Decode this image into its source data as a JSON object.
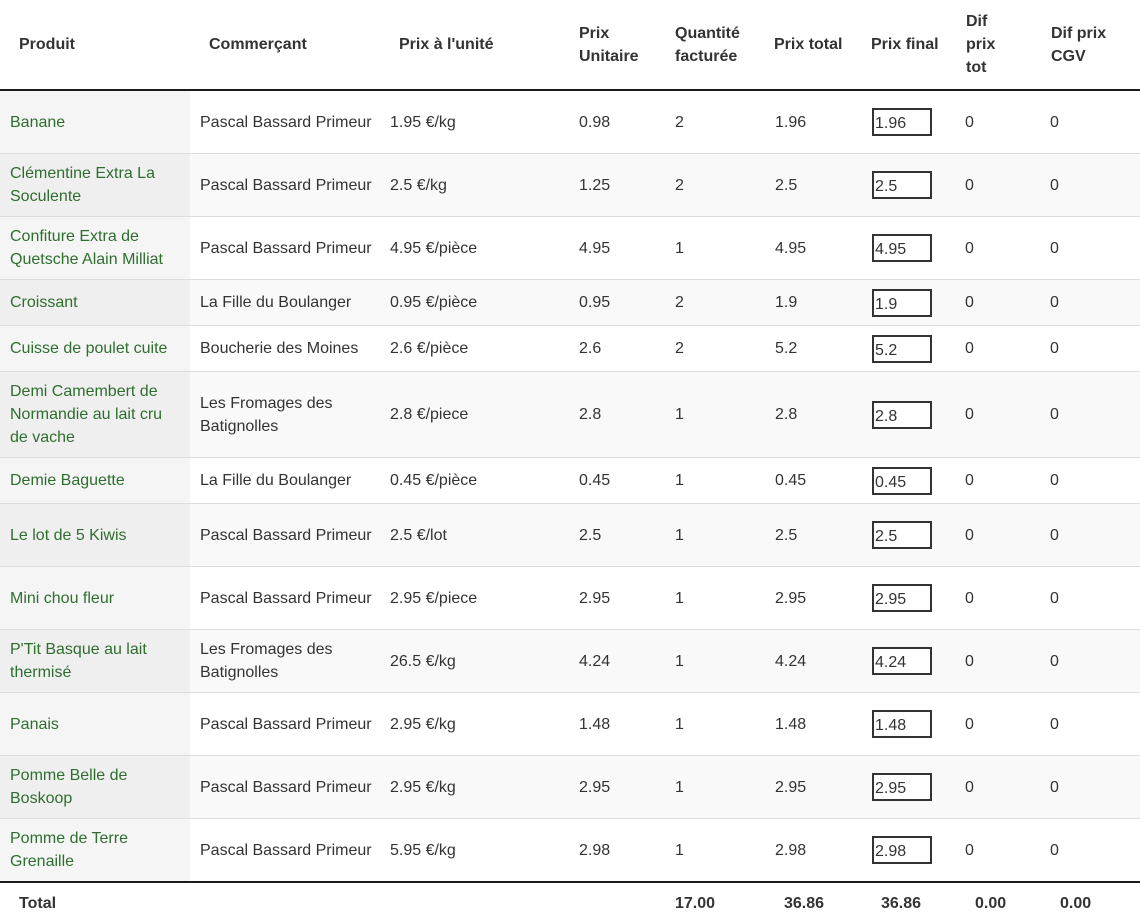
{
  "headers": {
    "produit": "Produit",
    "commercant": "Commerçant",
    "prix_unite": "Prix à l'unité",
    "prix_unitaire": "Prix Unitaire",
    "quantite": "Quantité facturée",
    "prix_total": "Prix total",
    "prix_final": "Prix final",
    "dif_prix_tot": "Dif prix tot",
    "dif_prix_cgv": "Dif prix CGV"
  },
  "rows": [
    {
      "produit": "Banane",
      "commercant": "Pascal Bassard Primeur",
      "prix_unite": "1.95 €/kg",
      "prix_unitaire": "0.98",
      "quantite": "2",
      "prix_total": "1.96",
      "prix_final": "1.96",
      "dif_tot": "0",
      "dif_cgv": "0"
    },
    {
      "produit": "Clémentine Extra La Soculente",
      "commercant": "Pascal Bassard Primeur",
      "prix_unite": "2.5 €/kg",
      "prix_unitaire": "1.25",
      "quantite": "2",
      "prix_total": "2.5",
      "prix_final": "2.5",
      "dif_tot": "0",
      "dif_cgv": "0"
    },
    {
      "produit": "Confiture Extra de Quetsche Alain Milliat",
      "commercant": "Pascal Bassard Primeur",
      "prix_unite": "4.95 €/pièce",
      "prix_unitaire": "4.95",
      "quantite": "1",
      "prix_total": "4.95",
      "prix_final": "4.95",
      "dif_tot": "0",
      "dif_cgv": "0"
    },
    {
      "produit": "Croissant",
      "commercant": "La Fille du Boulanger",
      "prix_unite": "0.95 €/pièce",
      "prix_unitaire": "0.95",
      "quantite": "2",
      "prix_total": "1.9",
      "prix_final": "1.9",
      "dif_tot": "0",
      "dif_cgv": "0"
    },
    {
      "produit": "Cuisse de poulet cuite",
      "commercant": "Boucherie des Moines",
      "prix_unite": "2.6 €/pièce",
      "prix_unitaire": "2.6",
      "quantite": "2",
      "prix_total": "5.2",
      "prix_final": "5.2",
      "dif_tot": "0",
      "dif_cgv": "0"
    },
    {
      "produit": "Demi Camembert de Normandie au lait cru de vache",
      "commercant": "Les Fromages des Batignolles",
      "prix_unite": "2.8 €/piece",
      "prix_unitaire": "2.8",
      "quantite": "1",
      "prix_total": "2.8",
      "prix_final": "2.8",
      "dif_tot": "0",
      "dif_cgv": "0"
    },
    {
      "produit": "Demie Baguette",
      "commercant": "La Fille du Boulanger",
      "prix_unite": "0.45 €/pièce",
      "prix_unitaire": "0.45",
      "quantite": "1",
      "prix_total": "0.45",
      "prix_final": "0.45",
      "dif_tot": "0",
      "dif_cgv": "0"
    },
    {
      "produit": "Le lot de 5 Kiwis",
      "commercant": "Pascal Bassard Primeur",
      "prix_unite": "2.5 €/lot",
      "prix_unitaire": "2.5",
      "quantite": "1",
      "prix_total": "2.5",
      "prix_final": "2.5",
      "dif_tot": "0",
      "dif_cgv": "0"
    },
    {
      "produit": "Mini chou fleur",
      "commercant": "Pascal Bassard Primeur",
      "prix_unite": "2.95 €/piece",
      "prix_unitaire": "2.95",
      "quantite": "1",
      "prix_total": "2.95",
      "prix_final": "2.95",
      "dif_tot": "0",
      "dif_cgv": "0"
    },
    {
      "produit": "P'Tit Basque au lait thermisé",
      "commercant": "Les Fromages des Batignolles",
      "prix_unite": "26.5 €/kg",
      "prix_unitaire": "4.24",
      "quantite": "1",
      "prix_total": "4.24",
      "prix_final": "4.24",
      "dif_tot": "0",
      "dif_cgv": "0"
    },
    {
      "produit": "Panais",
      "commercant": "Pascal Bassard Primeur",
      "prix_unite": "2.95 €/kg",
      "prix_unitaire": "1.48",
      "quantite": "1",
      "prix_total": "1.48",
      "prix_final": "1.48",
      "dif_tot": "0",
      "dif_cgv": "0"
    },
    {
      "produit": "Pomme Belle de Boskoop",
      "commercant": "Pascal Bassard Primeur",
      "prix_unite": "2.95 €/kg",
      "prix_unitaire": "2.95",
      "quantite": "1",
      "prix_total": "2.95",
      "prix_final": "2.95",
      "dif_tot": "0",
      "dif_cgv": "0"
    },
    {
      "produit": "Pomme de Terre Grenaille",
      "commercant": "Pascal Bassard Primeur",
      "prix_unite": "5.95 €/kg",
      "prix_unitaire": "2.98",
      "quantite": "1",
      "prix_total": "2.98",
      "prix_final": "2.98",
      "dif_tot": "0",
      "dif_cgv": "0"
    }
  ],
  "totals": {
    "label": "Total",
    "quantite": "17.00",
    "prix_total": "36.86",
    "prix_final": "36.86",
    "dif_tot": "0.00",
    "dif_cgv": "0.00"
  }
}
